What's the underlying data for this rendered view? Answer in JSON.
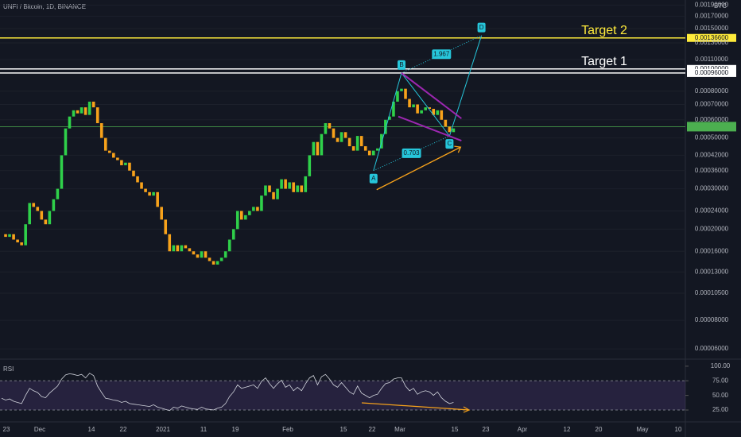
{
  "chart_data": [
    {
      "type": "candlestick",
      "title": "UNFI / Bitcoin, 1D, BINANCE",
      "unit": "BTC",
      "log_scale": true,
      "ylim": [
        5.5e-05,
        0.002
      ],
      "yticks": [
        {
          "value": 0.0019,
          "label": "0.00190000"
        },
        {
          "value": 0.0017,
          "label": "0.00170000"
        },
        {
          "value": 0.0015,
          "label": "0.00150000"
        },
        {
          "value": 0.001366,
          "label": "0.00136600",
          "color": "#ffeb3b"
        },
        {
          "value": 0.0013,
          "label": "0.00130000"
        },
        {
          "value": 0.0011,
          "label": "0.00110000"
        },
        {
          "value": 0.001,
          "label": "0.00100000",
          "color": "#ffffff"
        },
        {
          "value": 0.00096,
          "label": "0.00096000",
          "color": "#ffffff"
        },
        {
          "value": 0.0008,
          "label": "0.00080000"
        },
        {
          "value": 0.0007,
          "label": "0.00070000"
        },
        {
          "value": 0.0006,
          "label": "0.00060000"
        },
        {
          "value": 0.0005,
          "label": "0.00050000"
        },
        {
          "value": 0.00042,
          "label": "0.00042000"
        },
        {
          "value": 0.00036,
          "label": "0.00036000"
        },
        {
          "value": 0.0003,
          "label": "0.00030000"
        },
        {
          "value": 0.00024,
          "label": "0.00024000"
        },
        {
          "value": 0.0002,
          "label": "0.00020000"
        },
        {
          "value": 0.00016,
          "label": "0.00016000"
        },
        {
          "value": 0.00013,
          "label": "0.00013000"
        },
        {
          "value": 0.000105,
          "label": "0.00010500"
        },
        {
          "value": 8e-05,
          "label": "0.00008000"
        },
        {
          "value": 6e-05,
          "label": "0.00006000"
        }
      ],
      "up_color": "#2fd04a",
      "down_color": "#f7a21b",
      "closes": [
        0.00019,
        0.000185,
        0.00019,
        0.00018,
        0.000175,
        0.00017,
        0.00021,
        0.00026,
        0.00025,
        0.00024,
        0.00022,
        0.00021,
        0.00024,
        0.00027,
        0.0003,
        0.00042,
        0.00055,
        0.00062,
        0.00066,
        0.00064,
        0.00068,
        0.00063,
        0.00072,
        0.00068,
        0.00058,
        0.0005,
        0.00044,
        0.00043,
        0.00041,
        0.0004,
        0.00038,
        0.00039,
        0.00036,
        0.00034,
        0.00032,
        0.0003,
        0.00029,
        0.00028,
        0.00029,
        0.00025,
        0.00022,
        0.00019,
        0.00016,
        0.00017,
        0.00016,
        0.00017,
        0.000165,
        0.00016,
        0.000155,
        0.00015,
        0.00016,
        0.00015,
        0.000145,
        0.00014,
        0.000145,
        0.00015,
        0.00016,
        0.00018,
        0.0002,
        0.00024,
        0.00022,
        0.00023,
        0.00024,
        0.00025,
        0.00024,
        0.00028,
        0.00031,
        0.00029,
        0.00027,
        0.0003,
        0.00033,
        0.0003,
        0.00032,
        0.00029,
        0.00031,
        0.00029,
        0.00034,
        0.00042,
        0.00048,
        0.00042,
        0.00052,
        0.00058,
        0.00055,
        0.0005,
        0.00048,
        0.00053,
        0.0005,
        0.00046,
        0.00044,
        0.00051,
        0.00046,
        0.00044,
        0.00042,
        0.00044,
        0.00045,
        0.00052,
        0.0006,
        0.00062,
        0.00072,
        0.0008,
        0.00082,
        0.00074,
        0.00068,
        0.0007,
        0.00064,
        0.00066,
        0.00068,
        0.00067,
        0.00063,
        0.00066,
        0.0006,
        0.00056,
        0.00053,
        0.00055
      ],
      "target_lines": [
        {
          "label": "Target 2",
          "value": 0.001366,
          "color": "#ffeb3b"
        },
        {
          "label": "Target 1",
          "value": 0.001,
          "color": "#ffffff"
        },
        {
          "value": 0.00096,
          "color": "#ffffff"
        }
      ],
      "current_price": {
        "value": 0.00056,
        "color": "#4caf50"
      },
      "pattern": {
        "color": "#26c6da",
        "points": [
          {
            "label": "A",
            "value": 0.00036
          },
          {
            "label": "B",
            "value": 0.00096
          },
          {
            "label": "C",
            "value": 0.00051
          },
          {
            "label": "D",
            "value": 0.0014
          }
        ],
        "ratios": [
          "0.703",
          "1.967"
        ]
      }
    },
    {
      "type": "line",
      "name": "RSI",
      "color": "#d1d4dc",
      "ylim": [
        6,
        108
      ],
      "yticks": [
        {
          "value": 100,
          "label": "100.00"
        },
        {
          "value": 75,
          "label": "75.00"
        },
        {
          "value": 50,
          "label": "50.00"
        },
        {
          "value": 25,
          "label": "25.00"
        }
      ],
      "band": [
        25,
        75
      ],
      "band_color": "#7e57c2",
      "values": [
        45,
        42,
        44,
        40,
        38,
        36,
        50,
        62,
        58,
        55,
        48,
        46,
        54,
        60,
        66,
        78,
        85,
        87,
        86,
        84,
        86,
        80,
        88,
        84,
        66,
        55,
        45,
        44,
        42,
        41,
        38,
        40,
        36,
        35,
        34,
        33,
        32,
        31,
        34,
        30,
        28,
        26,
        24,
        30,
        28,
        32,
        30,
        28,
        27,
        26,
        30,
        27,
        26,
        25,
        28,
        30,
        36,
        48,
        56,
        68,
        62,
        64,
        66,
        68,
        62,
        74,
        80,
        70,
        62,
        70,
        76,
        64,
        68,
        58,
        64,
        58,
        70,
        80,
        84,
        68,
        82,
        86,
        78,
        68,
        64,
        72,
        64,
        56,
        52,
        66,
        54,
        50,
        46,
        50,
        52,
        62,
        70,
        72,
        78,
        80,
        80,
        66,
        58,
        62,
        52,
        56,
        58,
        56,
        50,
        56,
        46,
        40,
        36,
        38
      ],
      "time_labels": [
        "23",
        "Dec",
        "14",
        "22",
        "2021",
        "11",
        "19",
        "Feb",
        "15",
        "22",
        "Mar",
        "15",
        "23",
        "Apr",
        "12",
        "20",
        "May",
        "10"
      ]
    }
  ]
}
